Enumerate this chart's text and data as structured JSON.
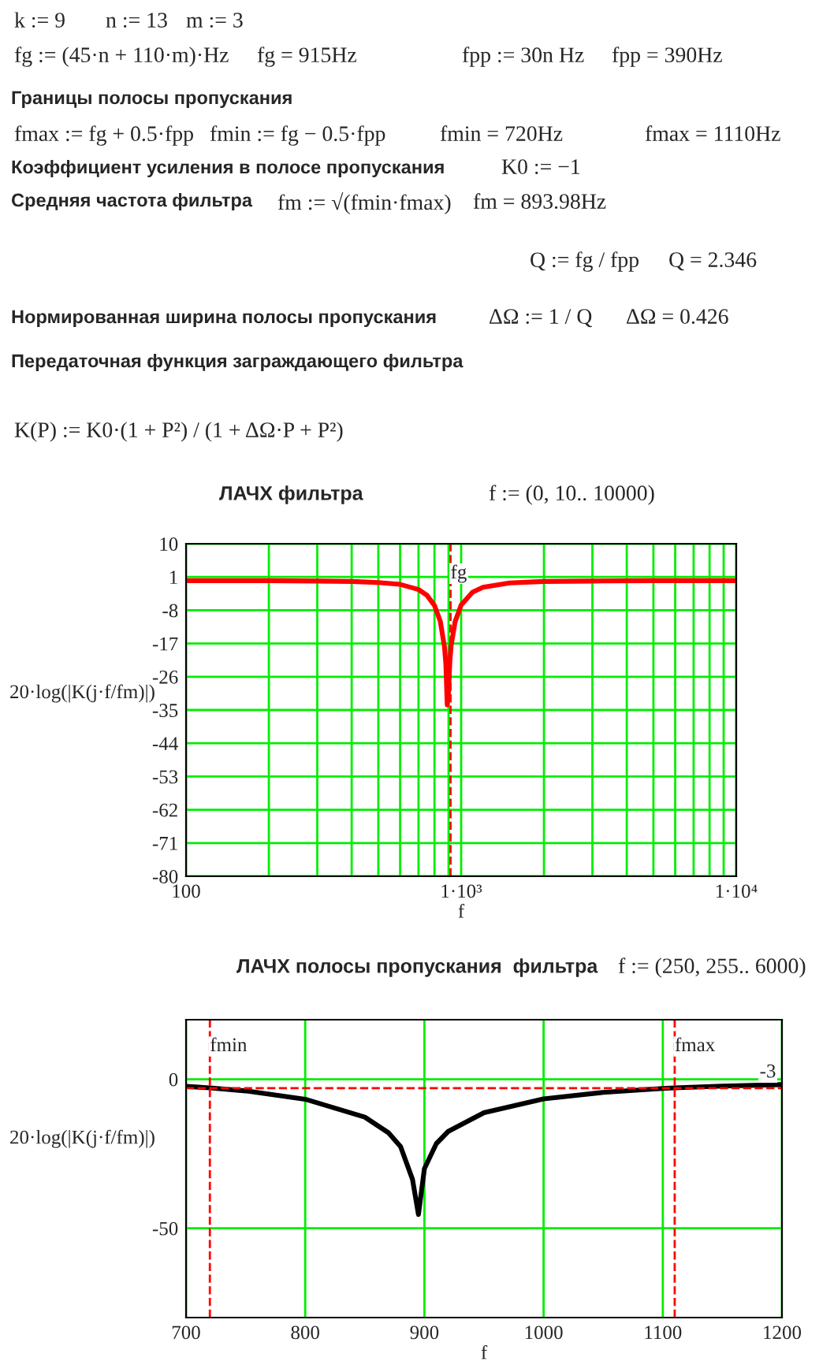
{
  "chart_data": [
    {
      "type": "line",
      "title": "ЛАЧХ фильтра",
      "subtitle": "f := (0, 10.. 10000)",
      "xlabel": "f",
      "ylabel": "20·log(|K(j·f/fm)|)",
      "annotations": [
        "k := 9",
        "n := 13",
        "m := 3",
        "fg := (45·n + 110·m)·Hz",
        "fg = 915Hz",
        "fpp := 30n Hz",
        "fpp = 390Hz",
        "Границы полосы пропускания",
        "fmax := fg + 0.5·fpp",
        "fmin := fg − 0.5·fpp",
        "fmin = 720Hz",
        "fmax = 1110Hz",
        "Коэффициент усиления в полосе пропускания",
        "K0 := −1",
        "Средняя частота фильтра",
        "fm := √(fmin·fmax)",
        "fm = 893.98Hz",
        "Q := fg / fpp",
        "Q = 2.346",
        "Нормированная ширина полосы пропускания",
        "ΔΩ := 1 / Q",
        "ΔΩ = 0.426",
        "Передаточная функция заграждающего фильтра",
        "K(P) := K0·(1 + P²) / (1 + ΔΩ·P + P²)"
      ],
      "log": "x",
      "xlim": [
        100,
        10000
      ],
      "xticks": [
        100,
        {
          "value": 1000,
          "label": "1·10³"
        },
        {
          "value": 10000,
          "label": "1·10⁴"
        }
      ],
      "ylim": [
        -80,
        10
      ],
      "yticks": [
        10,
        1,
        -8,
        -17,
        -26,
        -35,
        -44,
        -53,
        -62,
        -71,
        -80
      ],
      "grid": true,
      "marker": "none",
      "line_style": "solid",
      "x": [
        100,
        200,
        300,
        400,
        500,
        600,
        700,
        750,
        800,
        840,
        870,
        880,
        890,
        900,
        910,
        920,
        950,
        1000,
        1100,
        1200,
        1500,
        2000,
        3000,
        5000,
        10000
      ],
      "series": [
        {
          "color": "#ff0000",
          "values": [
            0,
            0,
            -0.1,
            -0.2,
            -0.5,
            -1.0,
            -2.4,
            -3.9,
            -6.7,
            -11.0,
            -18.0,
            -22.6,
            -33.6,
            -30.0,
            -21.6,
            -17.5,
            -11.2,
            -6.6,
            -3.1,
            -1.8,
            -0.6,
            -0.2,
            -0.1,
            0,
            0
          ]
        }
      ],
      "ref_lines": [
        {
          "axis": "x",
          "value": 915,
          "label": "fg",
          "color": "#ff0000",
          "line_style": "dashed"
        }
      ]
    },
    {
      "type": "line",
      "title": "ЛАЧХ полосы пропускания  фильтра",
      "subtitle": "f := (250, 255.. 6000)",
      "xlabel": "f",
      "ylabel": "20·log(|K(j·f/fm)|)",
      "xlim": [
        700,
        1200
      ],
      "xticks": [
        700,
        800,
        900,
        1000,
        1100,
        1200
      ],
      "ylim": [
        -80,
        20
      ],
      "yticks": [
        0,
        -50
      ],
      "grid": true,
      "marker": "none",
      "line_style": "solid",
      "x": [
        700,
        720,
        750,
        800,
        850,
        870,
        880,
        890,
        895,
        900,
        910,
        920,
        950,
        1000,
        1050,
        1100,
        1110,
        1150,
        1200
      ],
      "series": [
        {
          "color": "#000000",
          "values": [
            -2.4,
            -2.9,
            -3.9,
            -6.7,
            -12.7,
            -18.0,
            -22.6,
            -33.6,
            -45.4,
            -30.0,
            -21.6,
            -17.5,
            -11.2,
            -6.6,
            -4.4,
            -3.1,
            -2.9,
            -2.3,
            -1.8
          ]
        }
      ],
      "ref_lines": [
        {
          "axis": "x",
          "value": 720,
          "label": "fmin",
          "color": "#ff0000",
          "line_style": "dashed"
        },
        {
          "axis": "x",
          "value": 1110,
          "label": "fmax",
          "color": "#ff0000",
          "line_style": "dashed"
        },
        {
          "axis": "y",
          "value": -3,
          "label": "-3",
          "color": "#ff0000",
          "line_style": "dashed"
        }
      ]
    }
  ]
}
